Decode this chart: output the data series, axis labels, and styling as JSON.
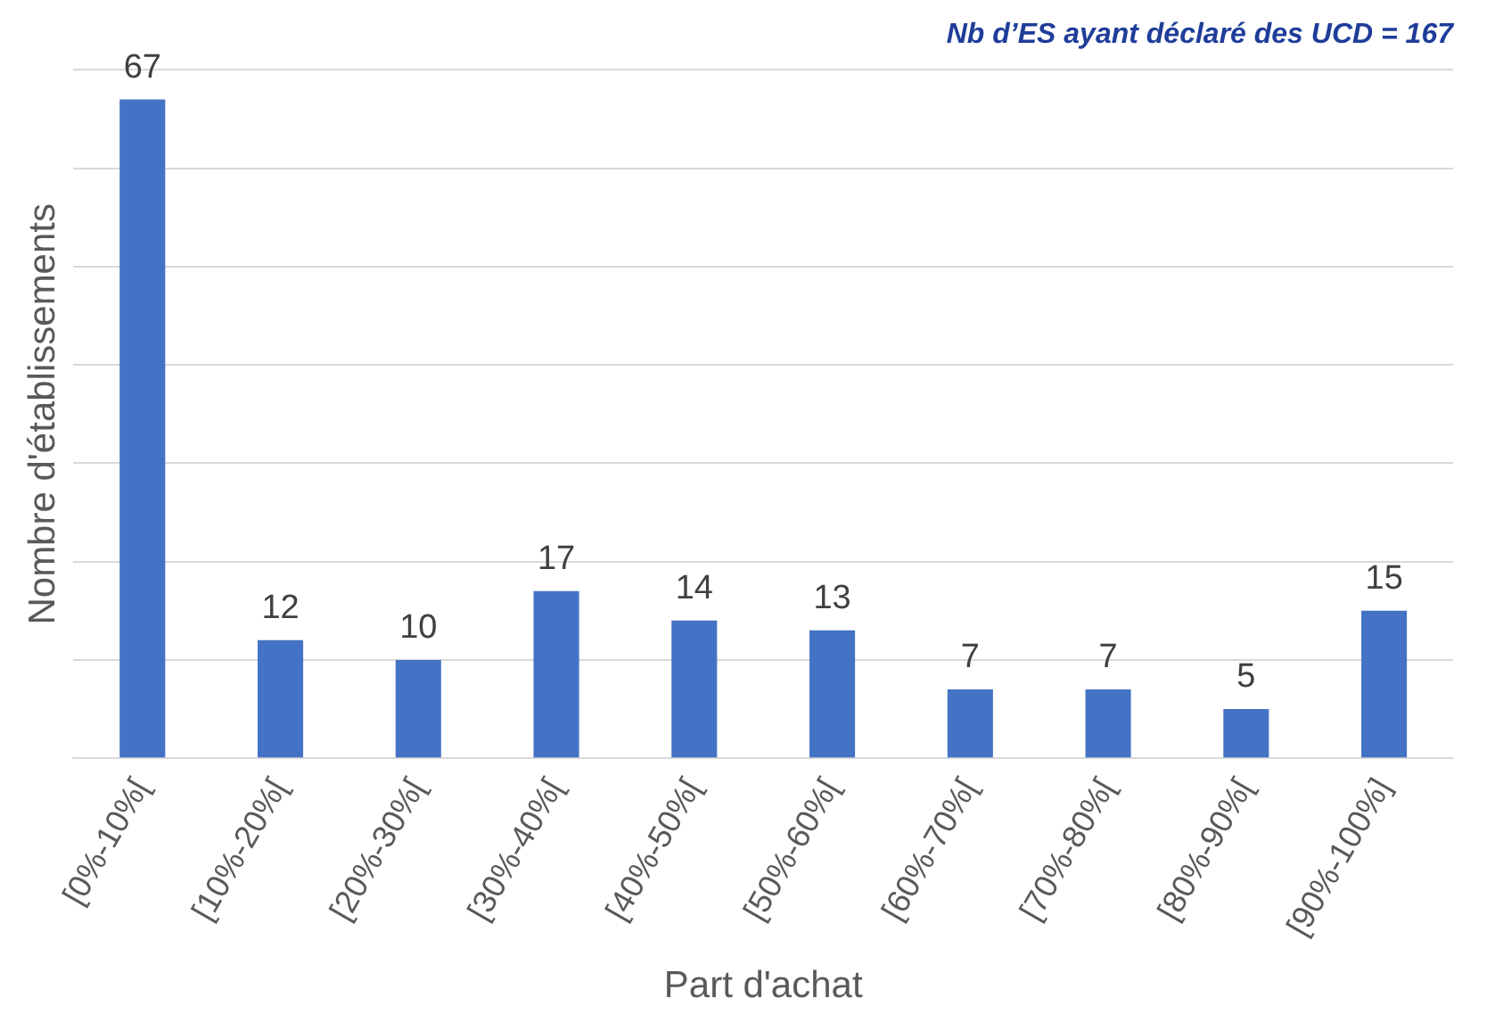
{
  "chart_data": {
    "type": "bar",
    "title": "Nb d’ES ayant déclaré des UCD = 167",
    "xlabel": "Part d'achat",
    "ylabel": "Nombre d'établissements",
    "categories": [
      "[0%-10%[",
      "[10%-20%[",
      "[20%-30%[",
      "[30%-40%[",
      "[40%-50%[",
      "[50%-60%[",
      "[60%-70%[",
      "[70%-80%[",
      "[80%-90%[",
      "[90%-100%]"
    ],
    "values": [
      67,
      12,
      10,
      17,
      14,
      13,
      7,
      7,
      5,
      15
    ],
    "color": "#4472c4",
    "ylim": [
      0,
      70
    ],
    "yticks": [
      {
        "value": 0,
        "label": null
      },
      {
        "value": 10,
        "label": null
      },
      {
        "value": 20,
        "label": null
      },
      {
        "value": 30,
        "label": null
      },
      {
        "value": 40,
        "label": null
      },
      {
        "value": 50,
        "label": null
      },
      {
        "value": 60,
        "label": null
      },
      {
        "value": 70,
        "label": null
      }
    ],
    "tick_labels": "x",
    "grid": "y",
    "data_labels": true
  }
}
